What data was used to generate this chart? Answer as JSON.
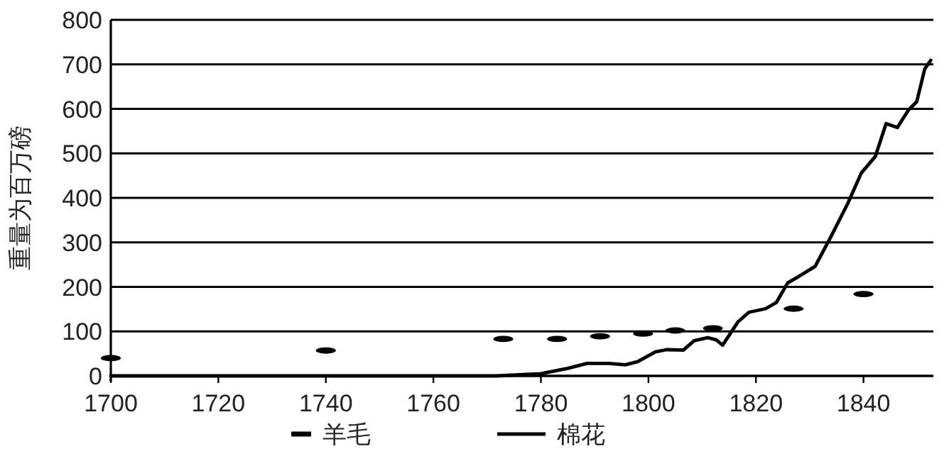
{
  "chart_data": {
    "type": "line",
    "ylabel": "重量为百万磅",
    "xlim": [
      1700,
      1853
    ],
    "xticks": [
      1700,
      1720,
      1740,
      1760,
      1780,
      1800,
      1820,
      1840
    ],
    "ylim": [
      0,
      800
    ],
    "yticks": [
      0,
      100,
      200,
      300,
      400,
      500,
      600,
      700,
      800
    ],
    "grid": "y",
    "legend": "bottom",
    "series": [
      {
        "name": "羊毛",
        "type": "scatter",
        "color": "#000000",
        "x": [
          1700,
          1740,
          1773,
          1783,
          1791,
          1799,
          1805,
          1812,
          1827,
          1840
        ],
        "values": [
          40,
          57,
          83,
          83,
          89,
          95,
          102,
          107,
          151,
          184
        ]
      },
      {
        "name": "棉花",
        "color": "#000000",
        "x": [
          1700,
          1771.7,
          1780,
          1785,
          1788.6,
          1792.6,
          1795.7,
          1798,
          1801.3,
          1803.4,
          1806.5,
          1808.5,
          1811,
          1812.6,
          1813.8,
          1815,
          1816.7,
          1818.7,
          1821.8,
          1823.8,
          1825.9,
          1827.9,
          1831,
          1834,
          1837.1,
          1839.6,
          1842.2,
          1844.2,
          1846.3,
          1848.4,
          1849.9,
          1851.4,
          1852.5
        ],
        "values": [
          0,
          0,
          5,
          17,
          28,
          28,
          25,
          32,
          54,
          59,
          58,
          79,
          86,
          81,
          69,
          91,
          122,
          143,
          151,
          165,
          209,
          223,
          246,
          314,
          388,
          456,
          493,
          567,
          558,
          598,
          616,
          690,
          709
        ]
      }
    ]
  }
}
